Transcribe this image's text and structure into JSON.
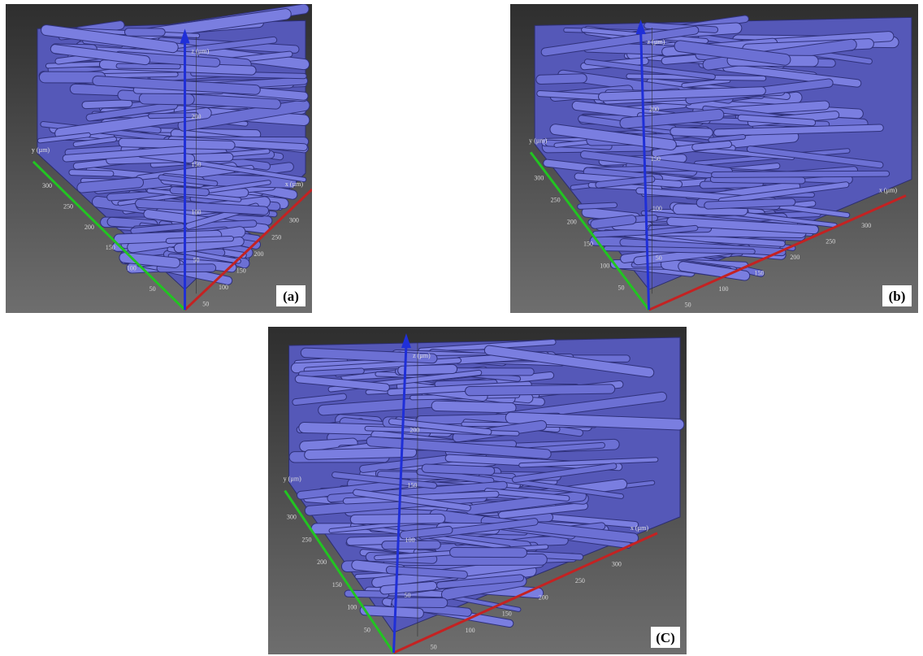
{
  "panels": [
    {
      "label": "(a)",
      "x_axis": {
        "label": "x (µm)",
        "ticks": [
          50,
          100,
          150,
          200,
          250,
          300
        ]
      },
      "y_axis": {
        "label": "y (µm)",
        "ticks": [
          50,
          100,
          150,
          200,
          250,
          300
        ]
      },
      "z_axis": {
        "label": "z (µm)",
        "ticks": [
          50,
          100,
          150,
          200
        ]
      }
    },
    {
      "label": "(b)",
      "x_axis": {
        "label": "x (µm)",
        "ticks": [
          50,
          100,
          150,
          200,
          250,
          300
        ]
      },
      "y_axis": {
        "label": "y (µm)",
        "ticks": [
          50,
          100,
          150,
          200,
          250,
          300
        ]
      },
      "z_axis": {
        "label": "z (µm)",
        "ticks": [
          50,
          100,
          150,
          200
        ]
      }
    },
    {
      "label": "(C)",
      "x_axis": {
        "label": "x (µm)",
        "ticks": [
          50,
          100,
          150,
          200,
          250,
          300
        ]
      },
      "y_axis": {
        "label": "y (µm)",
        "ticks": [
          50,
          100,
          150,
          200,
          250,
          300
        ]
      },
      "z_axis": {
        "label": "z (µm)",
        "ticks": [
          50,
          100,
          150,
          200
        ]
      }
    }
  ]
}
